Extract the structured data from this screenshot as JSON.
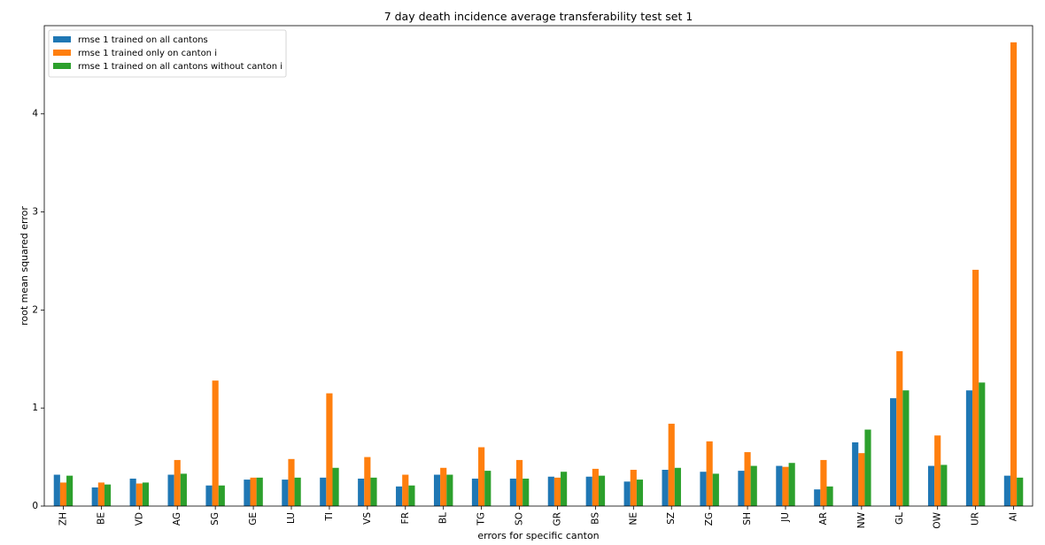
{
  "chart_data": {
    "type": "bar",
    "title": "7 day death incidence average transferability test set 1",
    "xlabel": "errors for specific canton",
    "ylabel": "root mean squared error",
    "ylim": [
      0,
      4.9
    ],
    "yticks": [
      0,
      1,
      2,
      3,
      4
    ],
    "grid": false,
    "legend_position": "top-left",
    "categories": [
      "ZH",
      "BE",
      "VD",
      "AG",
      "SG",
      "GE",
      "LU",
      "TI",
      "VS",
      "FR",
      "BL",
      "TG",
      "SO",
      "GR",
      "BS",
      "NE",
      "SZ",
      "ZG",
      "SH",
      "JU",
      "AR",
      "NW",
      "GL",
      "OW",
      "UR",
      "AI"
    ],
    "series": [
      {
        "name": "rmse 1 trained on all cantons",
        "color": "#1f77b4",
        "values": [
          0.32,
          0.19,
          0.28,
          0.32,
          0.21,
          0.27,
          0.27,
          0.29,
          0.28,
          0.2,
          0.32,
          0.28,
          0.28,
          0.3,
          0.3,
          0.25,
          0.37,
          0.35,
          0.36,
          0.41,
          0.17,
          0.65,
          1.1,
          0.41,
          1.18,
          0.31
        ]
      },
      {
        "name": "rmse 1 trained only on canton i",
        "color": "#ff7f0e",
        "values": [
          0.24,
          0.24,
          0.23,
          0.47,
          1.28,
          0.29,
          0.48,
          1.15,
          0.5,
          0.32,
          0.39,
          0.6,
          0.47,
          0.29,
          0.38,
          0.37,
          0.84,
          0.66,
          0.55,
          0.4,
          0.47,
          0.54,
          1.58,
          0.72,
          2.41,
          4.73
        ]
      },
      {
        "name": "rmse 1 trained on all cantons without canton i",
        "color": "#2ca02c",
        "values": [
          0.31,
          0.22,
          0.24,
          0.33,
          0.21,
          0.29,
          0.29,
          0.39,
          0.29,
          0.21,
          0.32,
          0.36,
          0.28,
          0.35,
          0.31,
          0.27,
          0.39,
          0.33,
          0.41,
          0.44,
          0.2,
          0.78,
          1.18,
          0.42,
          1.26,
          0.29
        ]
      }
    ]
  }
}
